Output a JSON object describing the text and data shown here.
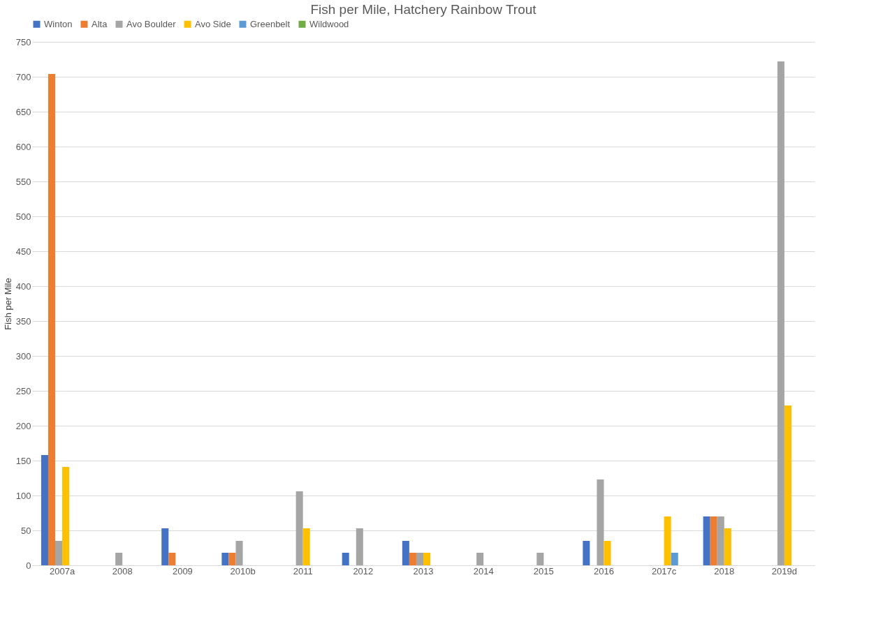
{
  "chart_data": {
    "type": "bar",
    "title": "Fish per Mile, Hatchery Rainbow Trout",
    "ylabel": "Fish per Mile",
    "categories": [
      "2007a",
      "2008",
      "2009",
      "2010b",
      "2011",
      "2012",
      "2013",
      "2014",
      "2015",
      "2016",
      "2017c",
      "2018",
      "2019d"
    ],
    "series": [
      {
        "name": "Winton",
        "color": "#4472c4",
        "values": [
          158,
          null,
          53,
          18,
          null,
          18,
          35,
          null,
          null,
          35,
          null,
          70,
          null
        ]
      },
      {
        "name": "Alta",
        "color": "#ed7d31",
        "values": [
          704,
          null,
          18,
          18,
          null,
          null,
          18,
          null,
          null,
          null,
          null,
          70,
          null
        ]
      },
      {
        "name": "Avo Boulder",
        "color": "#a5a5a5",
        "values": [
          35,
          18,
          null,
          35,
          106,
          53,
          18,
          18,
          18,
          123,
          null,
          70,
          722
        ]
      },
      {
        "name": "Avo Side",
        "color": "#ffc000",
        "values": [
          141,
          null,
          null,
          null,
          53,
          null,
          18,
          null,
          null,
          35,
          70,
          53,
          229
        ]
      },
      {
        "name": "Greenbelt",
        "color": "#5b9bd5",
        "values": [
          null,
          null,
          null,
          null,
          null,
          null,
          null,
          null,
          null,
          null,
          18,
          null,
          null
        ]
      },
      {
        "name": "Wildwood",
        "color": "#70ad47",
        "values": [
          null,
          null,
          null,
          null,
          null,
          null,
          null,
          null,
          null,
          null,
          null,
          null,
          null
        ]
      }
    ],
    "ylim": [
      0,
      750
    ],
    "yticks": [
      0,
      50,
      100,
      150,
      200,
      250,
      300,
      350,
      400,
      450,
      500,
      550,
      600,
      650,
      700,
      750
    ],
    "grid": "y",
    "legend": "top"
  }
}
